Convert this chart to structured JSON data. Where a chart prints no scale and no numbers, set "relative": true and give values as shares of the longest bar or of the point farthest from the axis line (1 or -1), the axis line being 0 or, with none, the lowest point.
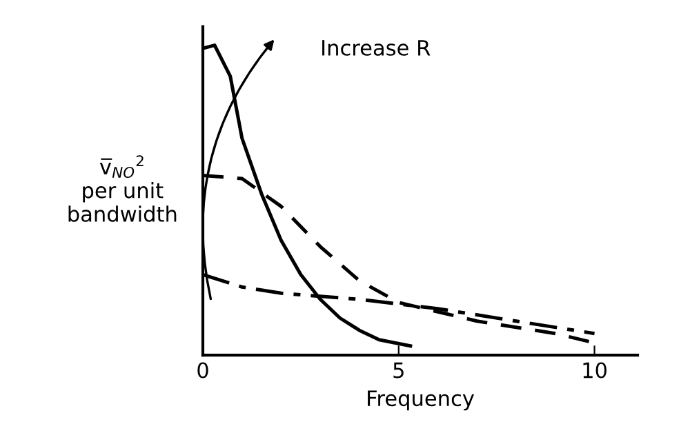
{
  "chart_data": {
    "type": "line",
    "relative": true,
    "xlabel": "Frequency",
    "ylabel": "v̅$_{NO}$$^{2}$\nper unit\nbandwidth",
    "xlim": [
      0,
      11.1
    ],
    "xticks": [
      0,
      5,
      10
    ],
    "grid": false,
    "legend": false,
    "marker": "none",
    "tick_labels": "x",
    "annotations": [
      "Increase R"
    ],
    "series": [
      {
        "color": "#000000",
        "line_style": "solid",
        "x": [
          0,
          0.3,
          0.7,
          1,
          1.5,
          2,
          2.5,
          3,
          3.5,
          4,
          4.5,
          5.3
        ],
        "values": [
          0.99,
          1,
          0.9,
          0.7,
          0.52,
          0.37,
          0.26,
          0.18,
          0.12,
          0.08,
          0.05,
          0.03
        ]
      },
      {
        "color": "#000000",
        "line_style": "dashed",
        "x": [
          0,
          1,
          2,
          3,
          4,
          5,
          6,
          7,
          8,
          9,
          10
        ],
        "values": [
          0.58,
          0.57,
          0.48,
          0.35,
          0.24,
          0.17,
          0.14,
          0.11,
          0.09,
          0.07,
          0.04
        ]
      },
      {
        "color": "#000000",
        "line_style": "dashdot",
        "x": [
          0,
          1,
          2,
          4,
          6,
          8,
          10
        ],
        "values": [
          0.26,
          0.22,
          0.2,
          0.18,
          0.15,
          0.11,
          0.07
        ]
      }
    ]
  }
}
